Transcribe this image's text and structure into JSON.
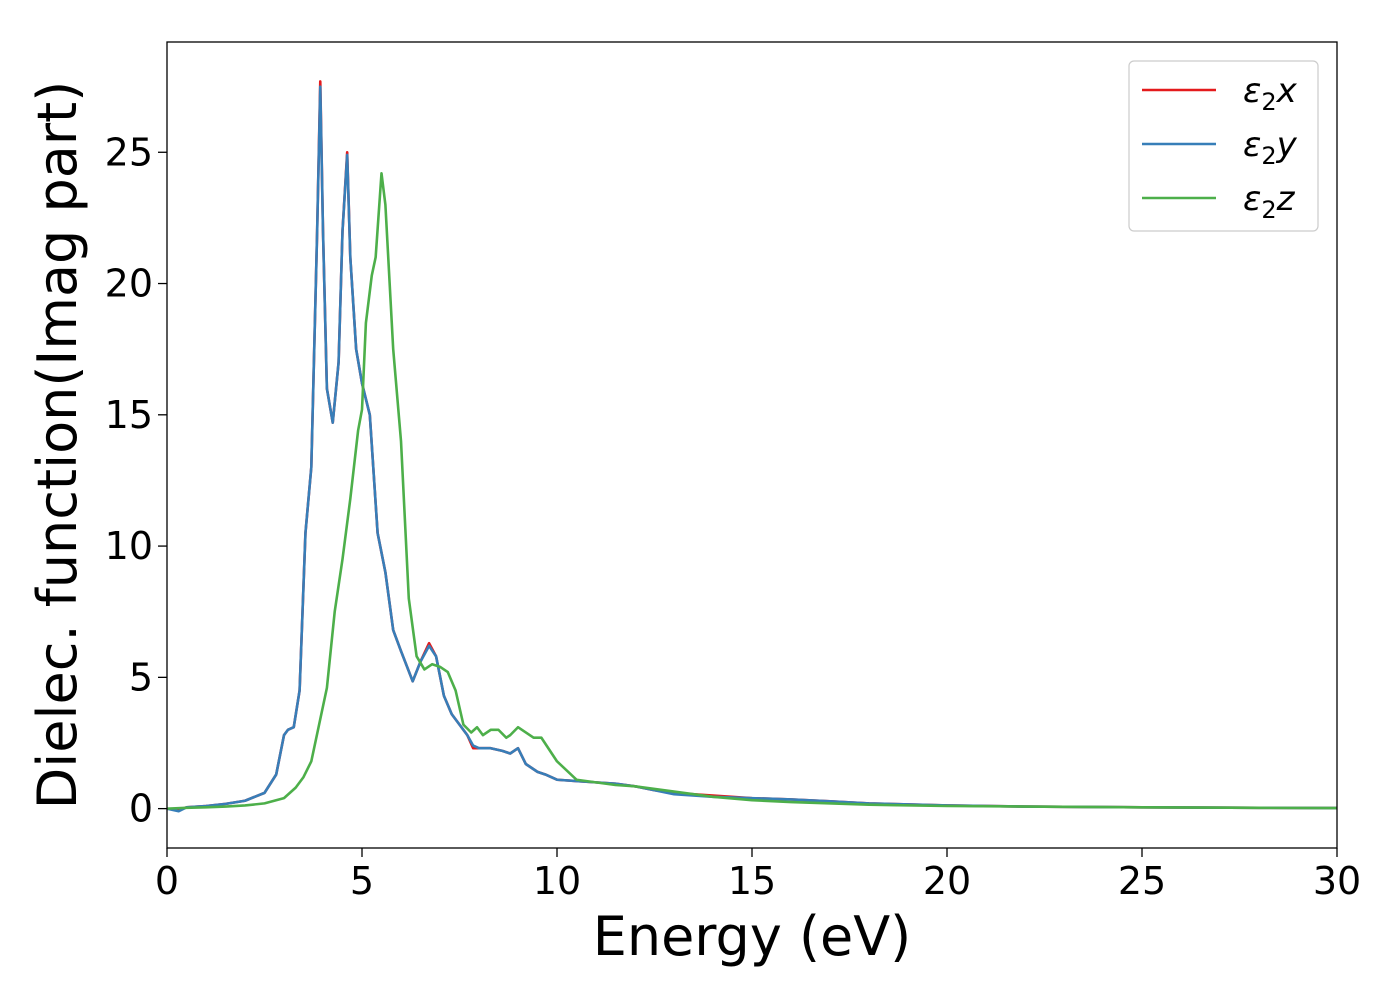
{
  "chart_data": {
    "type": "line",
    "xlabel": "Energy (eV)",
    "ylabel": "Dielec. function(Imag part)",
    "xlim": [
      0,
      30
    ],
    "ylim": [
      -1.5,
      29.2
    ],
    "xticks": [
      0,
      5,
      10,
      15,
      20,
      25,
      30
    ],
    "yticks": [
      0,
      5,
      10,
      15,
      20,
      25
    ],
    "grid": false,
    "legend_position": "top-right",
    "series": [
      {
        "name": "ε₂x",
        "legend_main": "ε",
        "legend_sub": "2",
        "legend_tail": "x",
        "color": "#e41a1c",
        "x": [
          0,
          0.3,
          0.5,
          1.0,
          1.5,
          2.0,
          2.5,
          2.8,
          3.0,
          3.1,
          3.25,
          3.4,
          3.55,
          3.7,
          3.85,
          3.93,
          4.0,
          4.1,
          4.25,
          4.4,
          4.5,
          4.62,
          4.7,
          4.85,
          5.0,
          5.2,
          5.4,
          5.6,
          5.8,
          6.0,
          6.3,
          6.5,
          6.72,
          6.9,
          7.1,
          7.3,
          7.5,
          7.7,
          7.85,
          8.0,
          8.3,
          8.6,
          8.8,
          9.0,
          9.2,
          9.5,
          9.7,
          10.0,
          10.5,
          11.0,
          11.5,
          12.0,
          12.5,
          13.0,
          14.0,
          15.0,
          16.0,
          17.0,
          18.0,
          20.0,
          22.0,
          25.0,
          28.0,
          30.0
        ],
        "y": [
          0,
          -0.05,
          0.05,
          0.1,
          0.18,
          0.3,
          0.6,
          1.3,
          2.8,
          3.0,
          3.1,
          4.5,
          10.5,
          13.0,
          22.0,
          27.7,
          22.0,
          16.0,
          14.7,
          17.0,
          22.0,
          25.0,
          21.0,
          17.5,
          16.2,
          15.0,
          10.5,
          9.0,
          6.8,
          6.0,
          4.85,
          5.6,
          6.3,
          5.8,
          4.3,
          3.6,
          3.2,
          2.8,
          2.3,
          2.3,
          2.3,
          2.2,
          2.1,
          2.3,
          1.7,
          1.4,
          1.3,
          1.1,
          1.05,
          1.0,
          0.95,
          0.85,
          0.7,
          0.6,
          0.5,
          0.4,
          0.35,
          0.28,
          0.2,
          0.12,
          0.08,
          0.05,
          0.03,
          0.02
        ]
      },
      {
        "name": "ε₂y",
        "legend_main": "ε",
        "legend_sub": "2",
        "legend_tail": "y",
        "color": "#377eb8",
        "x": [
          0,
          0.3,
          0.5,
          1.0,
          1.5,
          2.0,
          2.5,
          2.8,
          3.0,
          3.1,
          3.25,
          3.4,
          3.55,
          3.7,
          3.85,
          3.93,
          4.0,
          4.1,
          4.25,
          4.4,
          4.5,
          4.62,
          4.7,
          4.85,
          5.0,
          5.2,
          5.4,
          5.6,
          5.8,
          6.0,
          6.3,
          6.5,
          6.72,
          6.9,
          7.1,
          7.3,
          7.5,
          7.7,
          7.85,
          8.0,
          8.3,
          8.6,
          8.8,
          9.0,
          9.2,
          9.5,
          9.7,
          10.0,
          10.5,
          11.0,
          11.5,
          12.0,
          12.5,
          13.0,
          14.0,
          15.0,
          16.0,
          17.0,
          18.0,
          20.0,
          22.0,
          25.0,
          28.0,
          30.0
        ],
        "y": [
          0,
          -0.1,
          0.05,
          0.1,
          0.18,
          0.3,
          0.6,
          1.3,
          2.8,
          3.0,
          3.1,
          4.5,
          10.5,
          13.0,
          22.0,
          27.5,
          22.0,
          16.0,
          14.7,
          17.0,
          22.0,
          24.9,
          21.0,
          17.5,
          16.2,
          15.0,
          10.5,
          9.0,
          6.8,
          6.0,
          4.85,
          5.6,
          6.2,
          5.8,
          4.3,
          3.6,
          3.2,
          2.8,
          2.4,
          2.3,
          2.3,
          2.2,
          2.1,
          2.3,
          1.7,
          1.4,
          1.3,
          1.1,
          1.05,
          1.0,
          0.95,
          0.85,
          0.7,
          0.55,
          0.45,
          0.4,
          0.35,
          0.28,
          0.2,
          0.12,
          0.08,
          0.05,
          0.03,
          0.02
        ]
      },
      {
        "name": "ε₂z",
        "legend_main": "ε",
        "legend_sub": "2",
        "legend_tail": "z",
        "color": "#4daf4a",
        "x": [
          0,
          0.5,
          1.0,
          1.5,
          2.0,
          2.5,
          3.0,
          3.3,
          3.5,
          3.7,
          3.9,
          4.1,
          4.3,
          4.5,
          4.7,
          4.9,
          5.0,
          5.1,
          5.25,
          5.35,
          5.5,
          5.6,
          5.8,
          6.0,
          6.2,
          6.4,
          6.6,
          6.8,
          7.0,
          7.2,
          7.4,
          7.6,
          7.8,
          7.95,
          8.1,
          8.3,
          8.5,
          8.7,
          8.8,
          9.0,
          9.2,
          9.4,
          9.6,
          10.0,
          10.5,
          11.0,
          11.5,
          12.0,
          12.5,
          13.0,
          14.0,
          15.0,
          16.0,
          18.0,
          20.0,
          22.0,
          25.0,
          28.0,
          30.0
        ],
        "y": [
          0,
          0.03,
          0.05,
          0.08,
          0.12,
          0.2,
          0.4,
          0.8,
          1.2,
          1.8,
          3.2,
          4.6,
          7.5,
          9.5,
          11.8,
          14.4,
          15.2,
          18.5,
          20.3,
          21.0,
          24.2,
          23.0,
          17.5,
          14.0,
          8.0,
          5.8,
          5.3,
          5.5,
          5.4,
          5.2,
          4.5,
          3.2,
          2.9,
          3.1,
          2.8,
          3.0,
          3.0,
          2.7,
          2.8,
          3.1,
          2.9,
          2.7,
          2.7,
          1.8,
          1.1,
          1.0,
          0.9,
          0.85,
          0.75,
          0.65,
          0.45,
          0.32,
          0.25,
          0.15,
          0.1,
          0.08,
          0.05,
          0.03,
          0.02
        ]
      }
    ]
  }
}
